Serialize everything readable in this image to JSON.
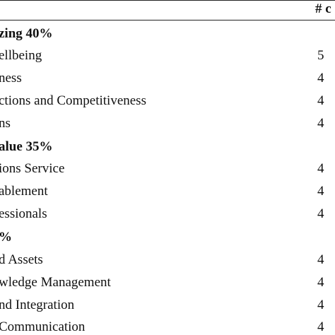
{
  "header": {
    "count_col": "# c"
  },
  "rows": [
    {
      "label": "zing 40%",
      "count": "",
      "bold": true
    },
    {
      "label": "ellbeing",
      "count": "5",
      "bold": false
    },
    {
      "label": "ness",
      "count": "4",
      "bold": false
    },
    {
      "label": "ctions and Competitiveness",
      "count": "4",
      "bold": false
    },
    {
      "label": "ns",
      "count": "4",
      "bold": false
    },
    {
      "label": "alue 35%",
      "count": "",
      "bold": true
    },
    {
      "label": "ions Service",
      "count": "4",
      "bold": false
    },
    {
      "label": "ablement",
      "count": "4",
      "bold": false
    },
    {
      "label": "essionals",
      "count": "4",
      "bold": false
    },
    {
      "label": "%",
      "count": "",
      "bold": true
    },
    {
      "label": "d Assets",
      "count": "4",
      "bold": false
    },
    {
      "label": "wledge Management",
      "count": "4",
      "bold": false
    },
    {
      "label": "nd Integration",
      "count": "4",
      "bold": false
    },
    {
      "label": "Communication",
      "count": "4",
      "bold": false
    }
  ]
}
